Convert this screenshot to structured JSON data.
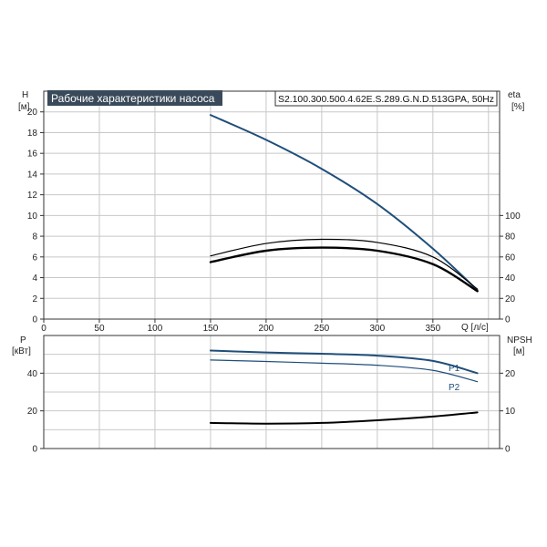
{
  "colors": {
    "grid": "#c8c8c8",
    "frame": "#333333",
    "head_curve": "#1f4e7a",
    "eff_curve_1": "#000000",
    "eff_curve_2": "#000000",
    "power_curve": "#1f4e7a",
    "npsh_curve": "#000000",
    "title_bg": "#3a4a5a"
  },
  "chart_data": [
    {
      "type": "line",
      "title": "Рабочие характеристики насоса",
      "subtitle": "S2.100.300.500.4.62E.S.289.G.N.D.513GPA, 50Hz",
      "ylabel_left": [
        "H",
        "[м]"
      ],
      "ylabel_right": [
        "eta",
        "[%]"
      ],
      "xlabel": "Q [л/с]",
      "xlim": [
        0,
        410
      ],
      "ylim_left": [
        0,
        22
      ],
      "ylim_right_ticks_start": 0,
      "x_ticks": [
        "0",
        "50",
        "100",
        "150",
        "200",
        "250",
        "300",
        "350"
      ],
      "y_ticks_left": [
        "0",
        "2",
        "4",
        "6",
        "8",
        "10",
        "12",
        "14",
        "16",
        "18",
        "20"
      ],
      "y_ticks_right": [
        "0",
        "20",
        "40",
        "60",
        "80",
        "100"
      ],
      "grid": true,
      "series": [
        {
          "key": "H",
          "axis": "left",
          "x": [
            150,
            200,
            250,
            300,
            350,
            390
          ],
          "y": [
            19.7,
            17.3,
            14.5,
            11.1,
            6.8,
            2.8
          ]
        },
        {
          "key": "eta1",
          "axis": "right",
          "x": [
            150,
            200,
            250,
            300,
            350,
            390
          ],
          "y": [
            61,
            73,
            77,
            74,
            60,
            29
          ]
        },
        {
          "key": "eta2",
          "axis": "right",
          "x": [
            150,
            200,
            250,
            300,
            350,
            390
          ],
          "y": [
            55,
            66,
            69,
            66,
            53,
            27
          ]
        }
      ]
    },
    {
      "type": "line",
      "ylabel_left": [
        "P",
        "[кВт]"
      ],
      "ylabel_right": [
        "NPSH",
        "[м]"
      ],
      "xlim": [
        0,
        410
      ],
      "ylim_left": [
        0,
        60
      ],
      "ylim_right": [
        0,
        30
      ],
      "y_ticks_left": [
        "0",
        "20",
        "40"
      ],
      "y_ticks_right": [
        "0",
        "10",
        "20"
      ],
      "grid": true,
      "series": [
        {
          "name": "P1",
          "axis": "left",
          "x": [
            150,
            200,
            250,
            300,
            350,
            390
          ],
          "y": [
            52,
            51,
            50.3,
            49.3,
            46.5,
            40
          ]
        },
        {
          "name": "P2",
          "axis": "left",
          "x": [
            150,
            200,
            250,
            300,
            350,
            390
          ],
          "y": [
            47,
            46.2,
            45.3,
            44.2,
            41.5,
            35.5
          ]
        },
        {
          "key": "NPSH",
          "axis": "right",
          "x": [
            150,
            200,
            250,
            300,
            350,
            390
          ],
          "y": [
            6.8,
            6.6,
            6.8,
            7.5,
            8.5,
            9.6
          ]
        }
      ]
    }
  ]
}
